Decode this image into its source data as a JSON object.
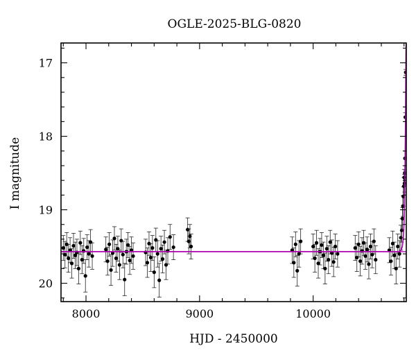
{
  "chart_data": {
    "type": "scatter",
    "title": "OGLE-2025-BLG-0820",
    "xlabel": "HJD - 2450000",
    "ylabel": "I magnitude",
    "xlim": [
      7780,
      10820
    ],
    "ylim": [
      20.25,
      16.73
    ],
    "y_inverted": true,
    "x_ticks": [
      8000,
      9000,
      10000
    ],
    "x_tick_labels": [
      "8000",
      "9000",
      "10000"
    ],
    "y_ticks": [
      17,
      18,
      19,
      20
    ],
    "y_tick_labels": [
      "17",
      "18",
      "19",
      "20"
    ],
    "grid": false,
    "legend": "none",
    "baseline_mag": 19.57,
    "colors": {
      "points": "#000000",
      "model": "#b000b0",
      "frame": "#000000"
    },
    "series": [
      {
        "points": [
          [
            7800,
            19.52,
            0.17
          ],
          [
            7815,
            19.61,
            0.18
          ],
          [
            7830,
            19.47,
            0.16
          ],
          [
            7845,
            19.66,
            0.19
          ],
          [
            7860,
            19.55,
            0.17
          ],
          [
            7875,
            19.73,
            0.2
          ],
          [
            7890,
            19.49,
            0.17
          ],
          [
            7905,
            19.62,
            0.18
          ],
          [
            7920,
            19.58,
            0.18
          ],
          [
            7935,
            19.8,
            0.21
          ],
          [
            7950,
            19.45,
            0.16
          ],
          [
            7965,
            19.68,
            0.19
          ],
          [
            7980,
            19.56,
            0.17
          ],
          [
            7995,
            19.9,
            0.22
          ],
          [
            8010,
            19.51,
            0.17
          ],
          [
            8025,
            19.6,
            0.18
          ],
          [
            8040,
            19.44,
            0.17
          ],
          [
            8055,
            19.63,
            0.18
          ],
          [
            8175,
            19.54,
            0.17
          ],
          [
            8190,
            19.7,
            0.19
          ],
          [
            8205,
            19.47,
            0.16
          ],
          [
            8220,
            19.82,
            0.21
          ],
          [
            8235,
            19.59,
            0.18
          ],
          [
            8250,
            19.39,
            0.16
          ],
          [
            8265,
            19.66,
            0.19
          ],
          [
            8280,
            19.53,
            0.17
          ],
          [
            8295,
            19.75,
            0.2
          ],
          [
            8310,
            19.42,
            0.16
          ],
          [
            8325,
            19.61,
            0.18
          ],
          [
            8340,
            19.95,
            0.22
          ],
          [
            8355,
            19.57,
            0.17
          ],
          [
            8370,
            19.48,
            0.17
          ],
          [
            8385,
            19.69,
            0.19
          ],
          [
            8400,
            19.55,
            0.18
          ],
          [
            8415,
            19.63,
            0.18
          ],
          [
            8525,
            19.58,
            0.18
          ],
          [
            8540,
            19.72,
            0.2
          ],
          [
            8555,
            19.46,
            0.16
          ],
          [
            8570,
            19.65,
            0.19
          ],
          [
            8585,
            19.52,
            0.17
          ],
          [
            8600,
            19.85,
            0.21
          ],
          [
            8615,
            19.41,
            0.16
          ],
          [
            8630,
            19.6,
            0.18
          ],
          [
            8645,
            19.96,
            0.23
          ],
          [
            8660,
            19.53,
            0.17
          ],
          [
            8675,
            19.67,
            0.19
          ],
          [
            8690,
            19.44,
            0.16
          ],
          [
            8705,
            19.75,
            0.2
          ],
          [
            8720,
            19.56,
            0.18
          ],
          [
            8740,
            19.37,
            0.17
          ],
          [
            8770,
            19.51,
            0.17
          ],
          [
            8895,
            19.27,
            0.16
          ],
          [
            8905,
            19.43,
            0.17
          ],
          [
            8915,
            19.36,
            0.16
          ],
          [
            8925,
            19.5,
            0.17
          ],
          [
            9815,
            19.55,
            0.18
          ],
          [
            9830,
            19.72,
            0.2
          ],
          [
            9845,
            19.47,
            0.17
          ],
          [
            9860,
            19.83,
            0.21
          ],
          [
            9875,
            19.6,
            0.18
          ],
          [
            9890,
            19.43,
            0.17
          ],
          [
            10000,
            19.5,
            0.17
          ],
          [
            10015,
            19.66,
            0.19
          ],
          [
            10030,
            19.45,
            0.17
          ],
          [
            10045,
            19.73,
            0.2
          ],
          [
            10060,
            19.57,
            0.18
          ],
          [
            10075,
            19.48,
            0.17
          ],
          [
            10090,
            19.62,
            0.18
          ],
          [
            10105,
            19.8,
            0.21
          ],
          [
            10120,
            19.53,
            0.17
          ],
          [
            10135,
            19.68,
            0.19
          ],
          [
            10150,
            19.44,
            0.16
          ],
          [
            10165,
            19.59,
            0.18
          ],
          [
            10180,
            19.71,
            0.2
          ],
          [
            10195,
            19.5,
            0.17
          ],
          [
            10215,
            19.6,
            0.18
          ],
          [
            10370,
            19.52,
            0.17
          ],
          [
            10385,
            19.65,
            0.19
          ],
          [
            10400,
            19.47,
            0.17
          ],
          [
            10415,
            19.7,
            0.2
          ],
          [
            10430,
            19.56,
            0.18
          ],
          [
            10445,
            19.45,
            0.17
          ],
          [
            10460,
            19.63,
            0.18
          ],
          [
            10475,
            19.54,
            0.17
          ],
          [
            10490,
            19.74,
            0.2
          ],
          [
            10505,
            19.5,
            0.17
          ],
          [
            10520,
            19.61,
            0.18
          ],
          [
            10535,
            19.43,
            0.17
          ],
          [
            10550,
            19.68,
            0.19
          ],
          [
            10670,
            19.55,
            0.17
          ],
          [
            10685,
            19.7,
            0.19
          ],
          [
            10700,
            19.46,
            0.17
          ],
          [
            10715,
            19.62,
            0.18
          ],
          [
            10730,
            19.8,
            0.21
          ],
          [
            10745,
            19.5,
            0.17
          ],
          [
            10760,
            19.6,
            0.18
          ],
          [
            10772,
            19.38,
            0.17
          ],
          [
            10780,
            19.28,
            0.16
          ],
          [
            10786,
            19.12,
            0.15
          ],
          [
            10790,
            18.95,
            0.14
          ],
          [
            10794,
            18.82,
            0.13
          ],
          [
            10798,
            18.68,
            0.12
          ],
          [
            10801,
            18.56,
            0.11
          ],
          [
            10804,
            18.64,
            0.12
          ],
          [
            10806,
            18.5,
            0.1
          ],
          [
            10808,
            18.3,
            0.1
          ],
          [
            10811,
            17.74,
            0.06
          ],
          [
            10815,
            17.13,
            0.04
          ]
        ]
      }
    ],
    "model_curve": [
      [
        7780,
        19.57
      ],
      [
        10760,
        19.57
      ],
      [
        10775,
        19.55
      ],
      [
        10785,
        19.5
      ],
      [
        10793,
        19.4
      ],
      [
        10799,
        19.22
      ],
      [
        10804,
        18.98
      ],
      [
        10808,
        18.6
      ],
      [
        10811,
        18.1
      ],
      [
        10813,
        17.7
      ],
      [
        10815,
        17.25
      ],
      [
        10817,
        16.9
      ],
      [
        10818,
        16.73
      ]
    ]
  }
}
